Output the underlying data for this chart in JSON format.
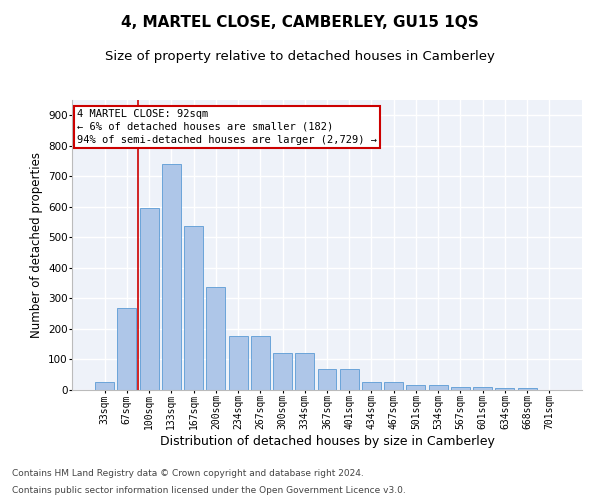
{
  "title": "4, MARTEL CLOSE, CAMBERLEY, GU15 1QS",
  "subtitle": "Size of property relative to detached houses in Camberley",
  "xlabel": "Distribution of detached houses by size in Camberley",
  "ylabel": "Number of detached properties",
  "categories": [
    "33sqm",
    "67sqm",
    "100sqm",
    "133sqm",
    "167sqm",
    "200sqm",
    "234sqm",
    "267sqm",
    "300sqm",
    "334sqm",
    "367sqm",
    "401sqm",
    "434sqm",
    "467sqm",
    "501sqm",
    "534sqm",
    "567sqm",
    "601sqm",
    "634sqm",
    "668sqm",
    "701sqm"
  ],
  "values": [
    25,
    270,
    595,
    740,
    537,
    338,
    178,
    178,
    120,
    120,
    68,
    68,
    25,
    25,
    15,
    15,
    10,
    10,
    7,
    7,
    0
  ],
  "bar_color": "#aec6e8",
  "bar_edge_color": "#5b9bd5",
  "background_color": "#ffffff",
  "plot_bg_color": "#eef2f9",
  "grid_color": "#ffffff",
  "annotation_text": "4 MARTEL CLOSE: 92sqm\n← 6% of detached houses are smaller (182)\n94% of semi-detached houses are larger (2,729) →",
  "annotation_box_color": "#ffffff",
  "annotation_box_edge_color": "#cc0000",
  "vline_x": 1.5,
  "vline_color": "#cc0000",
  "ylim": [
    0,
    950
  ],
  "yticks": [
    0,
    100,
    200,
    300,
    400,
    500,
    600,
    700,
    800,
    900
  ],
  "footer1": "Contains HM Land Registry data © Crown copyright and database right 2024.",
  "footer2": "Contains public sector information licensed under the Open Government Licence v3.0.",
  "title_fontsize": 11,
  "subtitle_fontsize": 9.5,
  "xlabel_fontsize": 9,
  "ylabel_fontsize": 8.5,
  "footer_fontsize": 6.5,
  "tick_fontsize": 7,
  "ytick_fontsize": 7.5,
  "ann_fontsize": 7.5
}
